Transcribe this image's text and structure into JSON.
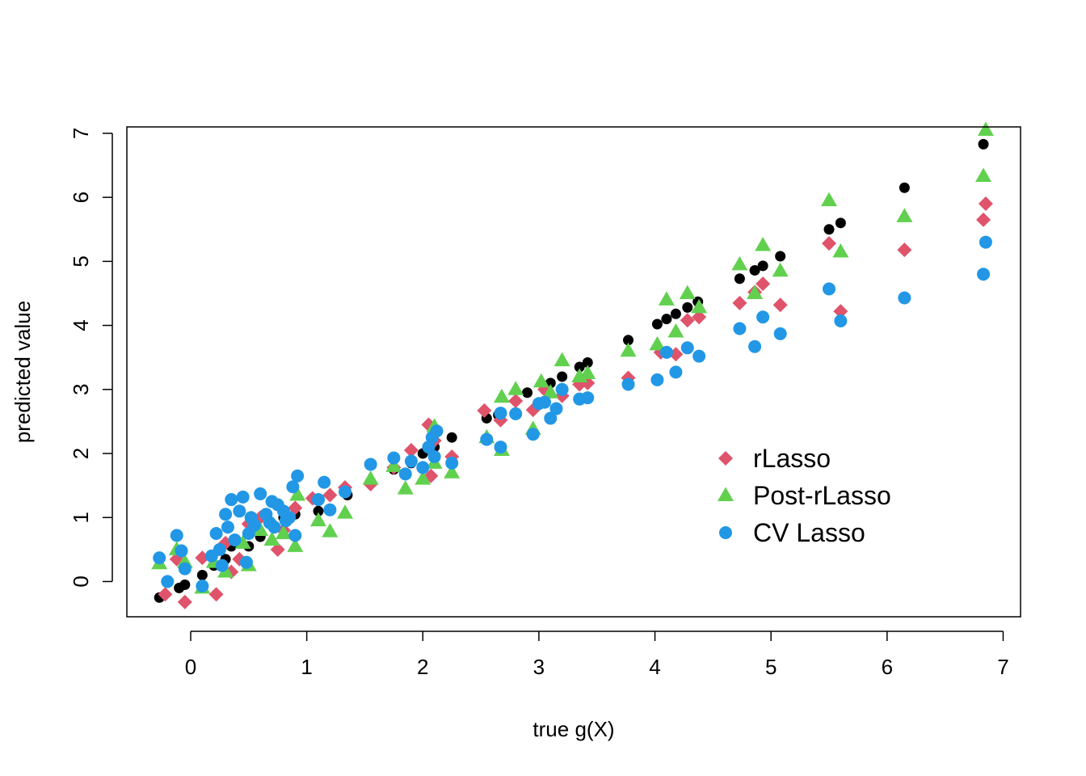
{
  "chart_data": {
    "type": "scatter",
    "xlabel": "true g(X)",
    "ylabel": "predicted value",
    "xlim": [
      -0.55,
      7.15
    ],
    "ylim": [
      -0.55,
      7.1
    ],
    "x_ticks": [
      "0",
      "1",
      "2",
      "3",
      "4",
      "5",
      "6",
      "7"
    ],
    "y_ticks": [
      "0",
      "1",
      "2",
      "3",
      "4",
      "5",
      "6",
      "7"
    ],
    "legend_position": "center-right",
    "series": [
      {
        "name": "",
        "marker": "circle-small",
        "color": "#000000",
        "points": [
          [
            -0.27,
            -0.25
          ],
          [
            -0.1,
            -0.1
          ],
          [
            -0.05,
            -0.05
          ],
          [
            0.1,
            0.1
          ],
          [
            0.2,
            0.25
          ],
          [
            0.3,
            0.35
          ],
          [
            0.35,
            0.55
          ],
          [
            0.5,
            0.55
          ],
          [
            0.6,
            0.7
          ],
          [
            0.7,
            0.9
          ],
          [
            0.8,
            1.0
          ],
          [
            0.9,
            1.05
          ],
          [
            1.1,
            1.1
          ],
          [
            1.35,
            1.35
          ],
          [
            1.75,
            1.75
          ],
          [
            1.9,
            1.85
          ],
          [
            2.0,
            2.0
          ],
          [
            2.1,
            2.1
          ],
          [
            2.25,
            2.25
          ],
          [
            2.55,
            2.55
          ],
          [
            2.65,
            2.6
          ],
          [
            2.9,
            2.95
          ],
          [
            3.05,
            3.0
          ],
          [
            3.1,
            3.1
          ],
          [
            3.2,
            3.2
          ],
          [
            3.35,
            3.35
          ],
          [
            3.42,
            3.42
          ],
          [
            3.77,
            3.77
          ],
          [
            4.02,
            4.02
          ],
          [
            4.1,
            4.1
          ],
          [
            4.18,
            4.18
          ],
          [
            4.28,
            4.28
          ],
          [
            4.37,
            4.37
          ],
          [
            4.73,
            4.73
          ],
          [
            4.86,
            4.86
          ],
          [
            4.93,
            4.93
          ],
          [
            5.08,
            5.08
          ],
          [
            5.5,
            5.5
          ],
          [
            5.6,
            5.6
          ],
          [
            6.15,
            6.15
          ],
          [
            6.83,
            6.83
          ]
        ]
      },
      {
        "name": "rLasso",
        "marker": "diamond",
        "color": "#df536b",
        "points": [
          [
            -0.22,
            -0.2
          ],
          [
            -0.12,
            0.35
          ],
          [
            -0.05,
            -0.32
          ],
          [
            0.1,
            0.37
          ],
          [
            0.22,
            -0.2
          ],
          [
            0.3,
            0.6
          ],
          [
            0.35,
            0.15
          ],
          [
            0.42,
            0.35
          ],
          [
            0.5,
            0.9
          ],
          [
            0.6,
            1.0
          ],
          [
            0.75,
            0.5
          ],
          [
            0.8,
            0.8
          ],
          [
            0.9,
            1.15
          ],
          [
            1.05,
            1.3
          ],
          [
            1.2,
            1.35
          ],
          [
            1.33,
            1.47
          ],
          [
            1.55,
            1.52
          ],
          [
            1.75,
            1.78
          ],
          [
            1.9,
            2.05
          ],
          [
            2.05,
            2.45
          ],
          [
            2.07,
            1.65
          ],
          [
            2.1,
            2.2
          ],
          [
            2.25,
            1.95
          ],
          [
            2.53,
            2.67
          ],
          [
            2.67,
            2.52
          ],
          [
            2.8,
            2.82
          ],
          [
            2.95,
            2.68
          ],
          [
            3.05,
            3.0
          ],
          [
            3.2,
            2.9
          ],
          [
            3.35,
            3.08
          ],
          [
            3.42,
            3.1
          ],
          [
            3.77,
            3.18
          ],
          [
            4.05,
            3.58
          ],
          [
            4.18,
            3.55
          ],
          [
            4.28,
            4.08
          ],
          [
            4.38,
            4.13
          ],
          [
            4.73,
            4.35
          ],
          [
            4.86,
            4.52
          ],
          [
            4.93,
            4.65
          ],
          [
            5.08,
            4.32
          ],
          [
            5.5,
            5.28
          ],
          [
            5.6,
            4.22
          ],
          [
            6.15,
            5.18
          ],
          [
            6.83,
            5.65
          ],
          [
            6.85,
            5.9
          ]
        ]
      },
      {
        "name": "Post-rLasso",
        "marker": "triangle",
        "color": "#61d04f",
        "points": [
          [
            -0.27,
            0.28
          ],
          [
            -0.12,
            0.5
          ],
          [
            -0.05,
            0.3
          ],
          [
            0.1,
            -0.1
          ],
          [
            0.2,
            0.3
          ],
          [
            0.3,
            0.15
          ],
          [
            0.45,
            0.6
          ],
          [
            0.5,
            0.25
          ],
          [
            0.6,
            0.8
          ],
          [
            0.7,
            0.65
          ],
          [
            0.8,
            0.75
          ],
          [
            0.9,
            0.55
          ],
          [
            0.92,
            1.35
          ],
          [
            1.1,
            0.95
          ],
          [
            1.2,
            0.78
          ],
          [
            1.33,
            1.07
          ],
          [
            1.55,
            1.6
          ],
          [
            1.75,
            1.8
          ],
          [
            1.85,
            1.45
          ],
          [
            2.0,
            1.6
          ],
          [
            2.1,
            1.85
          ],
          [
            2.1,
            2.42
          ],
          [
            2.25,
            1.7
          ],
          [
            2.55,
            2.25
          ],
          [
            2.68,
            2.05
          ],
          [
            2.68,
            2.88
          ],
          [
            2.8,
            3.0
          ],
          [
            2.95,
            2.38
          ],
          [
            3.02,
            3.12
          ],
          [
            3.1,
            2.95
          ],
          [
            3.2,
            3.45
          ],
          [
            3.35,
            3.2
          ],
          [
            3.42,
            3.25
          ],
          [
            3.77,
            3.6
          ],
          [
            4.02,
            3.7
          ],
          [
            4.1,
            4.4
          ],
          [
            4.18,
            3.9
          ],
          [
            4.28,
            4.5
          ],
          [
            4.38,
            4.28
          ],
          [
            4.73,
            4.95
          ],
          [
            4.86,
            4.5
          ],
          [
            4.93,
            5.25
          ],
          [
            5.08,
            4.85
          ],
          [
            5.5,
            5.95
          ],
          [
            5.6,
            5.15
          ],
          [
            6.15,
            5.7
          ],
          [
            6.83,
            6.33
          ],
          [
            6.85,
            7.05
          ]
        ]
      },
      {
        "name": "CV Lasso",
        "marker": "circle",
        "color": "#2297e6",
        "points": [
          [
            -0.27,
            0.37
          ],
          [
            -0.2,
            0.0
          ],
          [
            -0.12,
            0.72
          ],
          [
            -0.08,
            0.48
          ],
          [
            -0.05,
            0.2
          ],
          [
            0.1,
            -0.07
          ],
          [
            0.18,
            0.4
          ],
          [
            0.22,
            0.75
          ],
          [
            0.25,
            0.5
          ],
          [
            0.27,
            0.25
          ],
          [
            0.3,
            1.05
          ],
          [
            0.32,
            0.85
          ],
          [
            0.35,
            1.28
          ],
          [
            0.38,
            0.65
          ],
          [
            0.42,
            1.1
          ],
          [
            0.45,
            1.32
          ],
          [
            0.48,
            0.3
          ],
          [
            0.5,
            0.75
          ],
          [
            0.52,
            1.0
          ],
          [
            0.55,
            0.88
          ],
          [
            0.6,
            1.37
          ],
          [
            0.65,
            1.05
          ],
          [
            0.68,
            0.92
          ],
          [
            0.7,
            1.25
          ],
          [
            0.72,
            0.85
          ],
          [
            0.75,
            1.2
          ],
          [
            0.8,
            1.1
          ],
          [
            0.82,
            0.95
          ],
          [
            0.85,
            1.0
          ],
          [
            0.88,
            1.48
          ],
          [
            0.9,
            0.72
          ],
          [
            0.92,
            1.65
          ],
          [
            1.1,
            1.28
          ],
          [
            1.15,
            1.55
          ],
          [
            1.2,
            1.12
          ],
          [
            1.33,
            1.4
          ],
          [
            1.55,
            1.83
          ],
          [
            1.75,
            1.93
          ],
          [
            1.85,
            1.68
          ],
          [
            1.9,
            1.88
          ],
          [
            2.0,
            1.78
          ],
          [
            2.05,
            2.1
          ],
          [
            2.08,
            2.25
          ],
          [
            2.1,
            1.95
          ],
          [
            2.12,
            2.35
          ],
          [
            2.25,
            1.85
          ],
          [
            2.55,
            2.22
          ],
          [
            2.67,
            2.1
          ],
          [
            2.67,
            2.63
          ],
          [
            2.8,
            2.62
          ],
          [
            2.95,
            2.3
          ],
          [
            3.0,
            2.78
          ],
          [
            3.05,
            2.8
          ],
          [
            3.1,
            2.55
          ],
          [
            3.15,
            2.7
          ],
          [
            3.2,
            3.0
          ],
          [
            3.35,
            2.85
          ],
          [
            3.42,
            2.87
          ],
          [
            3.77,
            3.08
          ],
          [
            4.02,
            3.15
          ],
          [
            4.1,
            3.58
          ],
          [
            4.18,
            3.27
          ],
          [
            4.28,
            3.65
          ],
          [
            4.38,
            3.52
          ],
          [
            4.73,
            3.95
          ],
          [
            4.86,
            3.67
          ],
          [
            4.93,
            4.13
          ],
          [
            5.08,
            3.87
          ],
          [
            5.5,
            4.57
          ],
          [
            5.6,
            4.07
          ],
          [
            6.15,
            4.43
          ],
          [
            6.83,
            4.8
          ],
          [
            6.85,
            5.3
          ]
        ]
      }
    ]
  }
}
